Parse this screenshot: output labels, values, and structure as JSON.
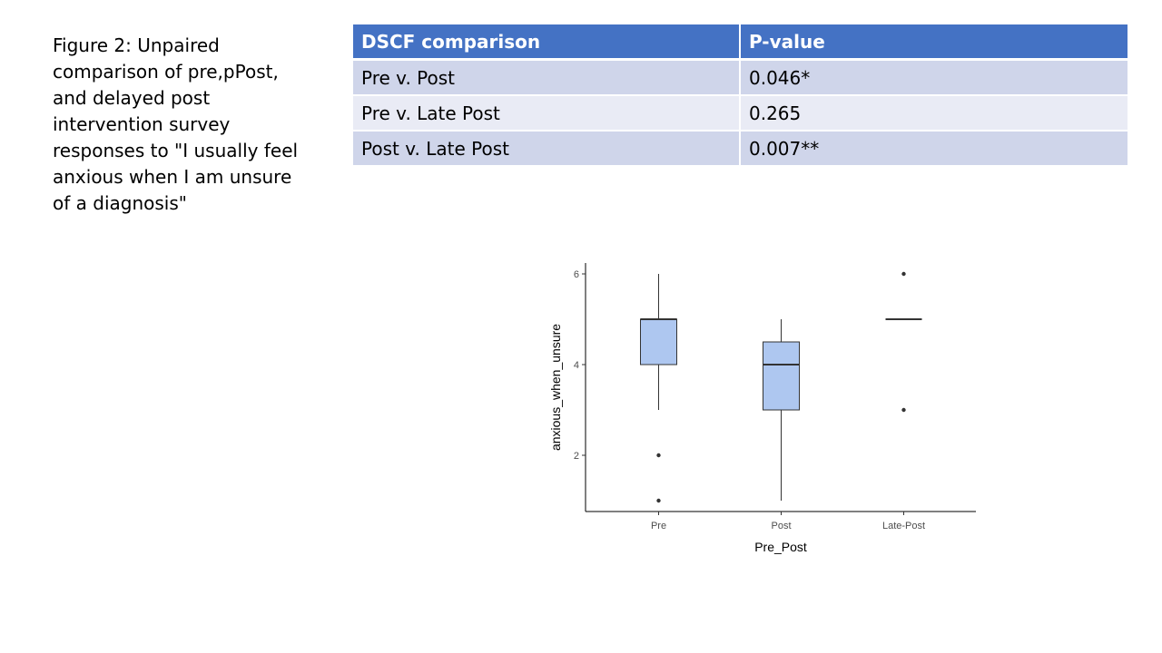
{
  "caption": "Figure 2: Unpaired comparison of pre,pPost, and delayed post intervention survey responses to \"I usually feel anxious when I am unsure of a diagnosis\"",
  "table": {
    "headers": [
      "DSCF comparison",
      "P-value"
    ],
    "rows": [
      {
        "comparison": "Pre v. Post",
        "p_value": "0.046*"
      },
      {
        "comparison": "Pre v. Late Post",
        "p_value": "0.265"
      },
      {
        "comparison": "Post v. Late Post",
        "p_value": "0.007**"
      }
    ]
  },
  "chart_data": {
    "type": "boxplot",
    "xlabel": "Pre_Post",
    "ylabel": "anxious_when_unsure",
    "ylim": [
      0.75,
      6.25
    ],
    "yticks": [
      2,
      4,
      6
    ],
    "categories": [
      "Pre",
      "Post",
      "Late-Post"
    ],
    "boxes": [
      {
        "category": "Pre",
        "whisker_low": 3,
        "q1": 4,
        "median": 5,
        "q3": 5,
        "whisker_high": 6,
        "outliers": [
          2,
          1
        ]
      },
      {
        "category": "Post",
        "whisker_low": 1,
        "q1": 3,
        "median": 4,
        "q3": 4.5,
        "whisker_high": 5,
        "outliers": []
      },
      {
        "category": "Late-Post",
        "whisker_low": 5,
        "q1": 5,
        "median": 5,
        "q3": 5,
        "whisker_high": 5,
        "outliers": [
          6,
          3
        ]
      }
    ],
    "fill_color": "#aec7f0",
    "line_color": "#333333",
    "grid": false
  }
}
